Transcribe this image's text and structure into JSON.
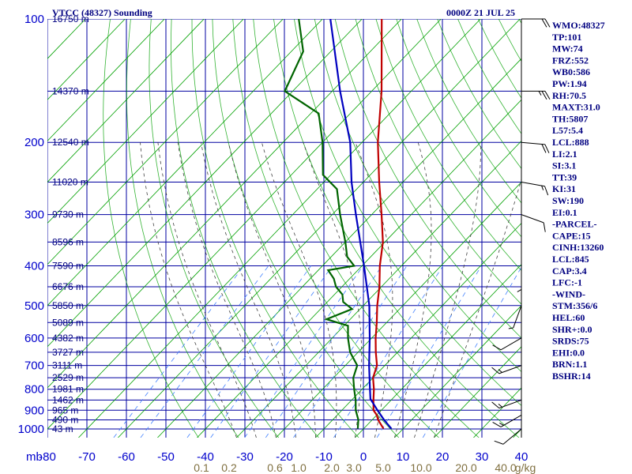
{
  "header": {
    "station": "VTCC (48327) Sounding",
    "time": "0000Z 21 JUL 25"
  },
  "colors": {
    "grid": "#0000a0",
    "temperature": "#c00000",
    "dewpoint": "#006400",
    "parcel": "#0000c0",
    "dry_adiabat": "#00a000",
    "moist_adiabat": "#404040",
    "mixing_ratio": "#4080ff",
    "labels": "#000080"
  },
  "chart_data": {
    "type": "skew-t",
    "x_unit_label": "mb",
    "x_ticks": [
      "-80",
      "-70",
      "-60",
      "-50",
      "-40",
      "-30",
      "-20",
      "-10",
      "0",
      "10",
      "20",
      "30",
      "40"
    ],
    "y_ticks": [
      {
        "p": 100,
        "label": "100"
      },
      {
        "p": 200,
        "label": "200"
      },
      {
        "p": 300,
        "label": "300"
      },
      {
        "p": 400,
        "label": "400"
      },
      {
        "p": 500,
        "label": "500"
      },
      {
        "p": 600,
        "label": "600"
      },
      {
        "p": 700,
        "label": "700"
      },
      {
        "p": 800,
        "label": "800"
      },
      {
        "p": 900,
        "label": "900"
      },
      {
        "p": 1000,
        "label": "1000"
      }
    ],
    "height_labels": [
      {
        "p": 100,
        "label": "16750 m"
      },
      {
        "p": 150,
        "label": "14370 m"
      },
      {
        "p": 200,
        "label": "12540 m"
      },
      {
        "p": 250,
        "label": "11020 m"
      },
      {
        "p": 300,
        "label": "9730 m"
      },
      {
        "p": 350,
        "label": "8596 m"
      },
      {
        "p": 400,
        "label": "7590 m"
      },
      {
        "p": 450,
        "label": "6676 m"
      },
      {
        "p": 500,
        "label": "5850 m"
      },
      {
        "p": 550,
        "label": "5089 m"
      },
      {
        "p": 600,
        "label": "4382 m"
      },
      {
        "p": 650,
        "label": "3727 m"
      },
      {
        "p": 700,
        "label": "3111 m"
      },
      {
        "p": 750,
        "label": "2529 m"
      },
      {
        "p": 800,
        "label": "1981 m"
      },
      {
        "p": 850,
        "label": "1462 m"
      },
      {
        "p": 900,
        "label": "965 m"
      },
      {
        "p": 950,
        "label": "490 m"
      },
      {
        "p": 1000,
        "label": "43 m"
      }
    ],
    "mixing_ratio_labels": [
      "0.1",
      "0.2",
      "0.6",
      "1.0",
      "2.0",
      "3.0",
      "5.0",
      "10.0",
      "20.0",
      "40.0",
      "g/kg"
    ],
    "mixing_ratio_values": [
      0.1,
      0.2,
      0.6,
      1.0,
      2.0,
      3.0,
      5.0,
      10.0,
      20.0,
      40.0
    ],
    "temperature": [
      {
        "p": 998,
        "t": 25.0
      },
      {
        "p": 950,
        "t": 21.5
      },
      {
        "p": 925,
        "t": 20.0
      },
      {
        "p": 900,
        "t": 18.0
      },
      {
        "p": 850,
        "t": 15.5
      },
      {
        "p": 800,
        "t": 13.0
      },
      {
        "p": 750,
        "t": 10.0
      },
      {
        "p": 700,
        "t": 8.0
      },
      {
        "p": 650,
        "t": 4.5
      },
      {
        "p": 600,
        "t": 1.0
      },
      {
        "p": 550,
        "t": -2.5
      },
      {
        "p": 500,
        "t": -6.5
      },
      {
        "p": 450,
        "t": -10.5
      },
      {
        "p": 400,
        "t": -15.5
      },
      {
        "p": 350,
        "t": -20.5
      },
      {
        "p": 300,
        "t": -27.5
      },
      {
        "p": 250,
        "t": -36.0
      },
      {
        "p": 200,
        "t": -46.0
      },
      {
        "p": 150,
        "t": -57.5
      },
      {
        "p": 100,
        "t": -75.0
      }
    ],
    "dewpoint": [
      {
        "p": 998,
        "t": 18.5
      },
      {
        "p": 950,
        "t": 16.5
      },
      {
        "p": 900,
        "t": 13.5
      },
      {
        "p": 850,
        "t": 11.0
      },
      {
        "p": 800,
        "t": 8.0
      },
      {
        "p": 750,
        "t": 5.0
      },
      {
        "p": 700,
        "t": 3.0
      },
      {
        "p": 650,
        "t": -2.0
      },
      {
        "p": 600,
        "t": -6.0
      },
      {
        "p": 560,
        "t": -9.0
      },
      {
        "p": 540,
        "t": -16.0
      },
      {
        "p": 510,
        "t": -12.0
      },
      {
        "p": 490,
        "t": -16.0
      },
      {
        "p": 470,
        "t": -18.0
      },
      {
        "p": 450,
        "t": -21.5
      },
      {
        "p": 430,
        "t": -24.0
      },
      {
        "p": 410,
        "t": -27.5
      },
      {
        "p": 400,
        "t": -22.0
      },
      {
        "p": 380,
        "t": -26.0
      },
      {
        "p": 350,
        "t": -30.0
      },
      {
        "p": 300,
        "t": -38.0
      },
      {
        "p": 260,
        "t": -45.0
      },
      {
        "p": 240,
        "t": -52.0
      },
      {
        "p": 200,
        "t": -60.0
      },
      {
        "p": 170,
        "t": -68.0
      },
      {
        "p": 150,
        "t": -82.0
      },
      {
        "p": 120,
        "t": -87.0
      },
      {
        "p": 100,
        "t": -96.0
      }
    ],
    "parcel": [
      {
        "p": 998,
        "t": 27.0
      },
      {
        "p": 950,
        "t": 23.0
      },
      {
        "p": 900,
        "t": 19.0
      },
      {
        "p": 845,
        "t": 14.5
      },
      {
        "p": 800,
        "t": 12.0
      },
      {
        "p": 700,
        "t": 6.0
      },
      {
        "p": 600,
        "t": -0.5
      },
      {
        "p": 500,
        "t": -8.5
      },
      {
        "p": 400,
        "t": -19.5
      },
      {
        "p": 300,
        "t": -34.0
      },
      {
        "p": 250,
        "t": -43.0
      },
      {
        "p": 200,
        "t": -53.0
      },
      {
        "p": 150,
        "t": -68.0
      },
      {
        "p": 100,
        "t": -88.0
      }
    ]
  },
  "wind_profile": [
    {
      "p": 100,
      "dir": 90,
      "spd": 20
    },
    {
      "p": 150,
      "dir": 90,
      "spd": 25
    },
    {
      "p": 200,
      "dir": 95,
      "spd": 20
    },
    {
      "p": 250,
      "dir": 100,
      "spd": 15
    },
    {
      "p": 300,
      "dir": 110,
      "spd": 10
    },
    {
      "p": 400,
      "dir": 180,
      "spd": 5
    },
    {
      "p": 500,
      "dir": 200,
      "spd": 5
    },
    {
      "p": 600,
      "dir": 240,
      "spd": 10
    },
    {
      "p": 700,
      "dir": 250,
      "spd": 15
    },
    {
      "p": 850,
      "dir": 250,
      "spd": 15
    },
    {
      "p": 925,
      "dir": 240,
      "spd": 15
    },
    {
      "p": 1000,
      "dir": 230,
      "spd": 10
    }
  ],
  "indices": [
    "WMO:48327",
    "TP:101",
    "MW:74",
    "FRZ:552",
    "WB0:586",
    "PW:1.94",
    "RH:70.5",
    "MAXT:31.0",
    "TH:5807",
    "L57:5.4",
    "LCL:888",
    "LI:2.1",
    "SI:3.1",
    "TT:39",
    "KI:31",
    "SW:190",
    "EI:0.1",
    "-PARCEL-",
    "CAPE:15",
    "CINH:13260",
    "LCL:845",
    "CAP:3.4",
    "LFC:-1",
    "-WIND-",
    "STM:356/6",
    "HEL:60",
    "SHR+:0.0",
    "SRDS:75",
    "EHI:0.0",
    "BRN:1.1",
    "BSHR:14"
  ]
}
